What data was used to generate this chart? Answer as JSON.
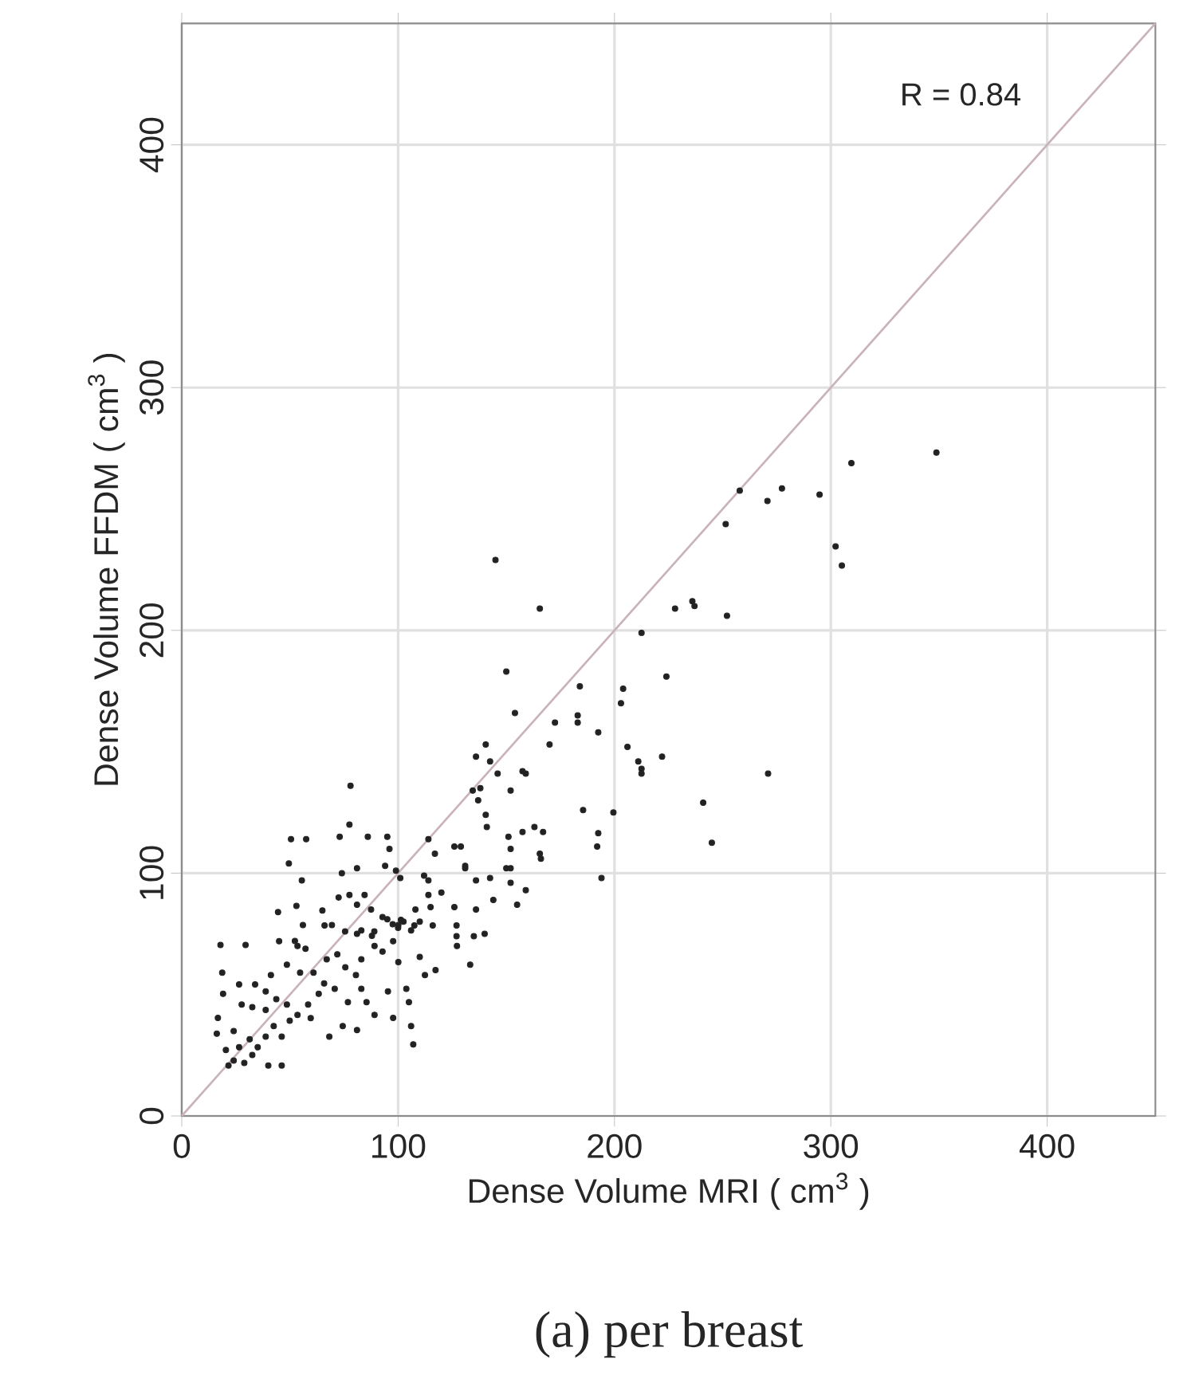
{
  "chart_data": {
    "type": "scatter",
    "xlabel": "Dense Volume MRI ( cm$^{3}$ )",
    "ylabel": "Dense Volume FFDM ( cm$^{3}$ )",
    "annotations": [
      "R = 0.84",
      "(a) per breast"
    ],
    "xlim": [
      0,
      450
    ],
    "ylim": [
      0,
      450
    ],
    "xticks": [
      0,
      100,
      200,
      300,
      400
    ],
    "yticks": [
      0,
      100,
      200,
      300,
      400
    ],
    "grid": true,
    "marker": "circle",
    "series": [
      {
        "color": "#222222",
        "x": [
          145,
          165.5,
          236,
          237,
          228,
          252,
          212.5,
          224,
          150,
          184,
          204,
          203,
          154,
          183,
          183,
          172.5,
          192.5,
          170,
          206,
          222,
          211,
          212.5,
          212.5,
          271,
          140.5,
          136,
          142.5,
          146,
          157.5,
          159,
          152,
          134.5,
          138,
          137,
          140.5,
          141,
          185.5,
          199.5,
          241,
          245,
          192.5,
          192,
          194,
          157.5,
          163,
          167,
          151,
          152,
          165.5,
          166,
          150,
          152,
          78,
          77.5,
          50.5,
          57.5,
          73,
          86,
          95,
          96,
          114,
          126,
          129,
          117,
          49.5,
          55.5,
          74,
          81,
          94,
          99,
          101,
          112,
          114,
          131,
          131,
          136,
          142.5,
          152,
          159,
          114,
          120,
          108,
          115,
          72.5,
          77.5,
          84.5,
          81,
          87.5,
          65,
          66,
          53,
          44.5,
          126,
          136,
          144,
          155,
          95,
          97.5,
          100,
          102.5,
          107.5,
          110,
          116,
          127,
          127,
          135,
          140,
          75.5,
          81,
          89,
          45,
          17.9,
          29.5,
          18.7,
          26.5,
          33.9,
          38.8,
          41.2,
          48.6,
          52.3,
          57.2,
          54.7,
          60.9,
          65.8,
          70.7,
          63.3,
          58.4,
          53.5,
          48.6,
          43.7,
          38.8,
          32.6,
          27.7,
          19.1,
          16.7,
          16.2,
          24,
          20.4,
          24,
          28.9,
          32.6,
          35.1,
          26.5,
          31.4,
          38.8,
          46.2,
          42.5,
          49.9,
          59.6,
          68.2,
          46.2,
          40,
          21.6,
          75.6,
          80.5,
          83,
          85.4,
          76.8,
          89.1,
          97.7,
          95.3,
          105,
          103.8,
          110,
          112.4,
          117.3,
          106,
          74.4,
          81,
          107,
          133.3,
          127.2,
          97.7,
          92.8,
          89.1,
          83,
          100.1,
          71.9,
          67,
          83,
          87.9,
          69.4,
          100.1,
          92.8,
          101.3,
          106,
          53.5,
          56,
          348.8,
          309.5,
          257.9,
          277.4,
          270.7,
          294.8,
          251.4,
          302.2,
          305.1
        ],
        "values": [
          229,
          209,
          212,
          210,
          209,
          206,
          199,
          181,
          183,
          177,
          176,
          170,
          166,
          165,
          162,
          162,
          158,
          153,
          152,
          148,
          146,
          143,
          141,
          141,
          153,
          148,
          146,
          141,
          142,
          141,
          134,
          134,
          135,
          130,
          124,
          119,
          126,
          125,
          129,
          112.5,
          116.5,
          111,
          98,
          117,
          119,
          117,
          115,
          110,
          108,
          106,
          102,
          96,
          136,
          120,
          114,
          114,
          115,
          115,
          115,
          110,
          114,
          111,
          111,
          108,
          104,
          97,
          100,
          102,
          103,
          101,
          98,
          99,
          97,
          103,
          102,
          97,
          98,
          102,
          93,
          91,
          92,
          85,
          86,
          90,
          91,
          91,
          87,
          85,
          84.6,
          78.5,
          86.5,
          84,
          86,
          85,
          89,
          87,
          81,
          79,
          77.5,
          80,
          78.5,
          80,
          78.5,
          78.5,
          74,
          74,
          75,
          76,
          75,
          76,
          72,
          70.4,
          70.4,
          59,
          54.2,
          54.2,
          51.3,
          58,
          62.3,
          72.1,
          68.9,
          59,
          59,
          54.6,
          52.4,
          50.3,
          45.9,
          41.6,
          45.9,
          48.1,
          43.7,
          44.8,
          45.9,
          50.3,
          40.4,
          33.9,
          35,
          27.2,
          22.8,
          21.8,
          25.1,
          28.3,
          28.3,
          31.6,
          32.7,
          32.7,
          37,
          39.2,
          40.3,
          32.7,
          20.8,
          20.8,
          20.8,
          61.2,
          58,
          52.4,
          46.9,
          46.9,
          41.6,
          40.4,
          51.3,
          46.9,
          52.4,
          65.5,
          58,
          60.1,
          37,
          37,
          35.4,
          29.5,
          62.3,
          70,
          72,
          67.7,
          70,
          64.5,
          63.4,
          66.6,
          64.5,
          76.4,
          74.2,
          78.6,
          78.6,
          81.9,
          80.8,
          76.4,
          70,
          78.6,
          273.2,
          268.9,
          257.6,
          258.5,
          253.3,
          255.9,
          243.8,
          234.6,
          226.7
        ]
      },
      {
        "type": "line",
        "color": "#c9b3b9",
        "marker": "none",
        "x": [
          0,
          450
        ],
        "values": [
          0,
          450
        ]
      }
    ]
  }
}
